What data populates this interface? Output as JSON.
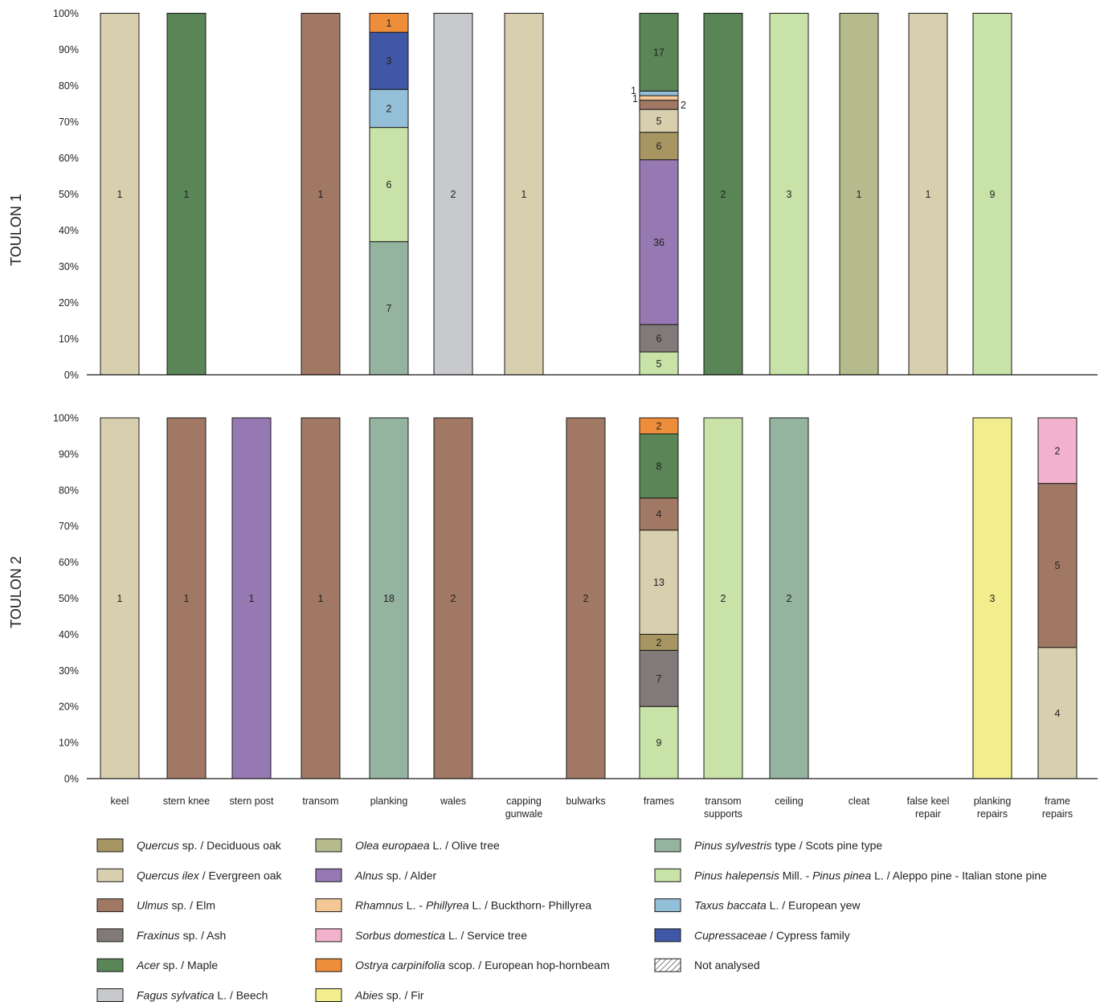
{
  "chart_data": {
    "type": "bar",
    "stacked": true,
    "percent_scale": true,
    "categories": [
      "keel",
      "stern knee",
      "stern post",
      "transom",
      "planking",
      "wales",
      "capping gunwale",
      "bulwarks",
      "frames",
      "transom supports",
      "ceiling",
      "cleat",
      "false keel repair",
      "planking repairs",
      "frame repairs"
    ],
    "yticks": [
      "0%",
      "10%",
      "20%",
      "30%",
      "40%",
      "50%",
      "60%",
      "70%",
      "80%",
      "90%",
      "100%"
    ],
    "ylim": [
      0,
      100
    ],
    "taxa": [
      {
        "id": "quercus",
        "italic": "Quercus",
        "rest": " sp. / Deciduous oak",
        "color": "#a79662"
      },
      {
        "id": "quercus_ilex",
        "italic": "Quercus ilex",
        "rest": " / Evergreen oak",
        "color": "#d8cfaf"
      },
      {
        "id": "ulmus",
        "italic": "Ulmus",
        "rest": " sp. / Elm",
        "color": "#a07864"
      },
      {
        "id": "fraxinus",
        "italic": "Fraxinus",
        "rest": " sp. / Ash",
        "color": "#827a78"
      },
      {
        "id": "acer",
        "italic": "Acer",
        "rest": " sp. / Maple",
        "color": "#5a8556"
      },
      {
        "id": "fagus",
        "italic": "Fagus sylvatica",
        "rest": " L. / Beech",
        "color": "#c8c9cc"
      },
      {
        "id": "olea",
        "italic": "Olea europaea",
        "rest": "  L. / Olive tree",
        "color": "#b5bb8d"
      },
      {
        "id": "alnus",
        "italic": "Alnus",
        "rest": " sp. / Alder",
        "color": "#9679b2"
      },
      {
        "id": "rhamnus",
        "italic": "Rhamnus",
        "rest": " L. - ",
        "italic2": "Phillyrea",
        "rest2": " L.  / Buckthorn- Phillyrea",
        "color": "#f3c896"
      },
      {
        "id": "sorbus",
        "italic": "Sorbus domestica",
        "rest": " L. / Service tree",
        "color": "#f2b2cd"
      },
      {
        "id": "ostrya",
        "italic": "Ostrya carpinifolia",
        "rest": " scop. / European hop-hornbeam",
        "color": "#ee8d3a"
      },
      {
        "id": "abies",
        "italic": "Abies",
        "rest": " sp. / Fir",
        "color": "#f2ee8e"
      },
      {
        "id": "pinus_sylvestris",
        "italic": "Pinus sylvestris",
        "rest": " type  / Scots pine type",
        "color": "#95b4a0"
      },
      {
        "id": "pinus_halepensis",
        "italic": "Pinus halepensis",
        "rest": " Mill. - ",
        "italic2": "Pinus pinea",
        "rest2": " L. / Aleppo pine - Italian stone pine",
        "color": "#c8e2a8"
      },
      {
        "id": "taxus",
        "italic": "Taxus baccata",
        "rest": " L. / European yew",
        "color": "#93bfd9"
      },
      {
        "id": "cupressaceae",
        "italic": "Cupressaceae",
        "rest": " / Cypress family",
        "color": "#3f57a6"
      },
      {
        "id": "not_analysed",
        "italic": "",
        "rest": "Not analysed",
        "color": "hatch"
      }
    ],
    "panels": [
      {
        "name": "TOULON 1",
        "bars": [
          {
            "category": "keel",
            "segments": [
              {
                "taxon": "quercus_ilex",
                "count": 1
              }
            ]
          },
          {
            "category": "stern knee",
            "segments": [
              {
                "taxon": "acer",
                "count": 1
              }
            ]
          },
          {
            "category": "stern post",
            "segments": []
          },
          {
            "category": "transom",
            "segments": [
              {
                "taxon": "ulmus",
                "count": 1
              }
            ]
          },
          {
            "category": "planking",
            "segments": [
              {
                "taxon": "pinus_sylvestris",
                "count": 7
              },
              {
                "taxon": "pinus_halepensis",
                "count": 6
              },
              {
                "taxon": "taxus",
                "count": 2
              },
              {
                "taxon": "cupressaceae",
                "count": 3
              },
              {
                "taxon": "ostrya",
                "count": 1
              }
            ]
          },
          {
            "category": "wales",
            "segments": [
              {
                "taxon": "fagus",
                "count": 2
              }
            ]
          },
          {
            "category": "capping gunwale",
            "segments": [
              {
                "taxon": "quercus_ilex",
                "count": 1
              }
            ]
          },
          {
            "category": "bulwarks",
            "segments": []
          },
          {
            "category": "frames",
            "segments": [
              {
                "taxon": "pinus_halepensis",
                "count": 5
              },
              {
                "taxon": "fraxinus",
                "count": 6
              },
              {
                "taxon": "alnus",
                "count": 36
              },
              {
                "taxon": "quercus",
                "count": 6
              },
              {
                "taxon": "quercus_ilex",
                "count": 5
              },
              {
                "taxon": "ulmus",
                "count": 2,
                "label_side": "right"
              },
              {
                "taxon": "rhamnus",
                "count": 1,
                "label_side": "left"
              },
              {
                "taxon": "taxus",
                "count": 1,
                "label_side": "left"
              },
              {
                "taxon": "acer",
                "count": 17
              }
            ]
          },
          {
            "category": "transom supports",
            "segments": [
              {
                "taxon": "acer",
                "count": 2
              }
            ]
          },
          {
            "category": "ceiling",
            "segments": [
              {
                "taxon": "pinus_halepensis",
                "count": 3
              }
            ]
          },
          {
            "category": "cleat",
            "segments": [
              {
                "taxon": "olea",
                "count": 1
              }
            ]
          },
          {
            "category": "false keel repair",
            "segments": [
              {
                "taxon": "quercus_ilex",
                "count": 1
              }
            ]
          },
          {
            "category": "planking repairs",
            "segments": [
              {
                "taxon": "pinus_halepensis",
                "count": 9
              }
            ]
          },
          {
            "category": "frame repairs",
            "segments": []
          }
        ]
      },
      {
        "name": "TOULON 2",
        "bars": [
          {
            "category": "keel",
            "segments": [
              {
                "taxon": "quercus_ilex",
                "count": 1
              }
            ]
          },
          {
            "category": "stern knee",
            "segments": [
              {
                "taxon": "ulmus",
                "count": 1
              }
            ]
          },
          {
            "category": "stern post",
            "segments": [
              {
                "taxon": "alnus",
                "count": 1
              }
            ]
          },
          {
            "category": "transom",
            "segments": [
              {
                "taxon": "ulmus",
                "count": 1
              }
            ]
          },
          {
            "category": "planking",
            "segments": [
              {
                "taxon": "pinus_sylvestris",
                "count": 18
              }
            ]
          },
          {
            "category": "wales",
            "segments": [
              {
                "taxon": "ulmus",
                "count": 2
              }
            ]
          },
          {
            "category": "capping gunwale",
            "segments": []
          },
          {
            "category": "bulwarks",
            "segments": [
              {
                "taxon": "ulmus",
                "count": 2
              }
            ]
          },
          {
            "category": "frames",
            "segments": [
              {
                "taxon": "pinus_halepensis",
                "count": 9
              },
              {
                "taxon": "fraxinus",
                "count": 7
              },
              {
                "taxon": "quercus",
                "count": 2
              },
              {
                "taxon": "quercus_ilex",
                "count": 13
              },
              {
                "taxon": "ulmus",
                "count": 4
              },
              {
                "taxon": "acer",
                "count": 8
              },
              {
                "taxon": "ostrya",
                "count": 2
              }
            ]
          },
          {
            "category": "transom supports",
            "segments": [
              {
                "taxon": "pinus_halepensis",
                "count": 2
              }
            ]
          },
          {
            "category": "ceiling",
            "segments": [
              {
                "taxon": "pinus_sylvestris",
                "count": 2
              }
            ]
          },
          {
            "category": "cleat",
            "segments": []
          },
          {
            "category": "false keel repair",
            "segments": []
          },
          {
            "category": "planking repairs",
            "segments": [
              {
                "taxon": "abies",
                "count": 3
              }
            ]
          },
          {
            "category": "frame repairs",
            "segments": [
              {
                "taxon": "quercus_ilex",
                "count": 4
              },
              {
                "taxon": "ulmus",
                "count": 5
              },
              {
                "taxon": "sorbus",
                "count": 2
              }
            ]
          }
        ]
      }
    ]
  }
}
